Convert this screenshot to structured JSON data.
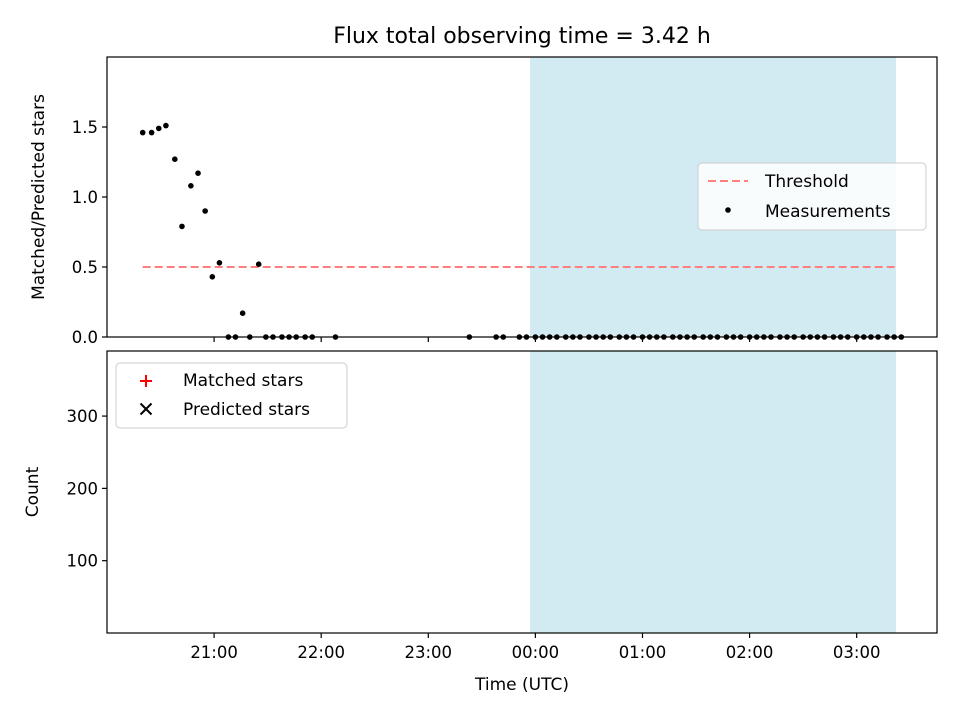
{
  "figure": {
    "title": "Flux total observing time = 3.42 h",
    "xlabel": "Time (UTC)",
    "shade_color": "#add8e6",
    "threshold_color": "#ff7f7f",
    "matched_color": "#ff0000",
    "predicted_color": "#000000",
    "measurement_color": "#000000"
  },
  "chart_data": [
    {
      "type": "scatter",
      "panel": "top",
      "ylabel": "Matched/Predicted stars",
      "xlim": [
        "20:00",
        "03:45"
      ],
      "ylim": [
        0,
        2.0
      ],
      "yticks": [
        0.0,
        0.5,
        1.0,
        1.5
      ],
      "ytick_labels": [
        "0.0",
        "0.5",
        "1.0",
        "1.5"
      ],
      "xticks": [
        "21:00",
        "22:00",
        "23:00",
        "00:00",
        "01:00",
        "02:00",
        "03:00"
      ],
      "shaded_interval": [
        "23:57",
        "03:22"
      ],
      "legend": {
        "placement": "center-right",
        "entries": [
          "Threshold",
          "Measurements"
        ]
      },
      "threshold": {
        "name": "Threshold",
        "y": 0.5,
        "x_range": [
          "20:20",
          "03:22"
        ],
        "style": "dashed"
      },
      "series": [
        {
          "name": "Measurements",
          "marker": "dot",
          "x": [
            "20:20",
            "20:25",
            "20:29",
            "20:33",
            "20:38",
            "20:42",
            "20:47",
            "20:51",
            "20:55",
            "20:59",
            "21:03",
            "21:08",
            "21:12",
            "21:16",
            "21:20",
            "21:25",
            "21:29",
            "21:33",
            "21:38",
            "21:42",
            "21:46",
            "21:51",
            "21:55",
            "22:08",
            "23:23",
            "23:38",
            "23:42",
            "23:51",
            "23:55",
            "24:00",
            "24:04",
            "24:08",
            "24:12",
            "24:17",
            "24:21",
            "24:25",
            "24:30",
            "24:34",
            "24:38",
            "24:42",
            "24:47",
            "24:51",
            "24:55",
            "25:00",
            "25:04",
            "25:08",
            "25:12",
            "25:17",
            "25:21",
            "25:25",
            "25:29",
            "25:34",
            "25:38",
            "25:42",
            "25:47",
            "25:51",
            "25:55",
            "26:00",
            "26:04",
            "26:08",
            "26:12",
            "26:17",
            "26:21",
            "26:25",
            "26:30",
            "26:34",
            "26:38",
            "26:42",
            "26:47",
            "26:51",
            "26:55",
            "27:00",
            "27:04",
            "27:08",
            "27:12",
            "27:17",
            "27:21",
            "27:25"
          ],
          "y": [
            1.46,
            1.46,
            1.49,
            1.51,
            1.27,
            0.79,
            1.08,
            1.17,
            0.9,
            0.43,
            0.53,
            0.0,
            0.0,
            0.17,
            0.0,
            0.52,
            0.0,
            0.0,
            0.0,
            0.0,
            0.0,
            0.0,
            0.0,
            0.0,
            0.0,
            0.0,
            0.0,
            0.0,
            0.0,
            0.0,
            0.0,
            0.0,
            0.0,
            0.0,
            0.0,
            0.0,
            0.0,
            0.0,
            0.0,
            0.0,
            0.0,
            0.0,
            0.0,
            0.0,
            0.0,
            0.0,
            0.0,
            0.0,
            0.0,
            0.0,
            0.0,
            0.0,
            0.0,
            0.0,
            0.0,
            0.0,
            0.0,
            0.0,
            0.0,
            0.0,
            0.0,
            0.0,
            0.0,
            0.0,
            0.0,
            0.0,
            0.0,
            0.0,
            0.0,
            0.0,
            0.0,
            0.0,
            0.0,
            0.0,
            0.0,
            0.0,
            0.0,
            0.0
          ]
        }
      ]
    },
    {
      "type": "scatter",
      "panel": "bottom",
      "ylabel": "Count",
      "xlim": [
        "20:00",
        "03:45"
      ],
      "ylim": [
        0,
        390
      ],
      "yticks": [
        100,
        200,
        300
      ],
      "ytick_labels": [
        "100",
        "200",
        "300"
      ],
      "xticks": [
        "21:00",
        "22:00",
        "23:00",
        "00:00",
        "01:00",
        "02:00",
        "03:00"
      ],
      "shaded_interval": [
        "23:57",
        "03:22"
      ],
      "legend": {
        "placement": "top-left",
        "entries": [
          "Matched stars",
          "Predicted stars"
        ]
      },
      "series": [
        {
          "name": "Matched stars",
          "marker": "plus",
          "x": [],
          "y": []
        },
        {
          "name": "Predicted stars",
          "marker": "x",
          "x": [],
          "y": []
        }
      ]
    }
  ]
}
